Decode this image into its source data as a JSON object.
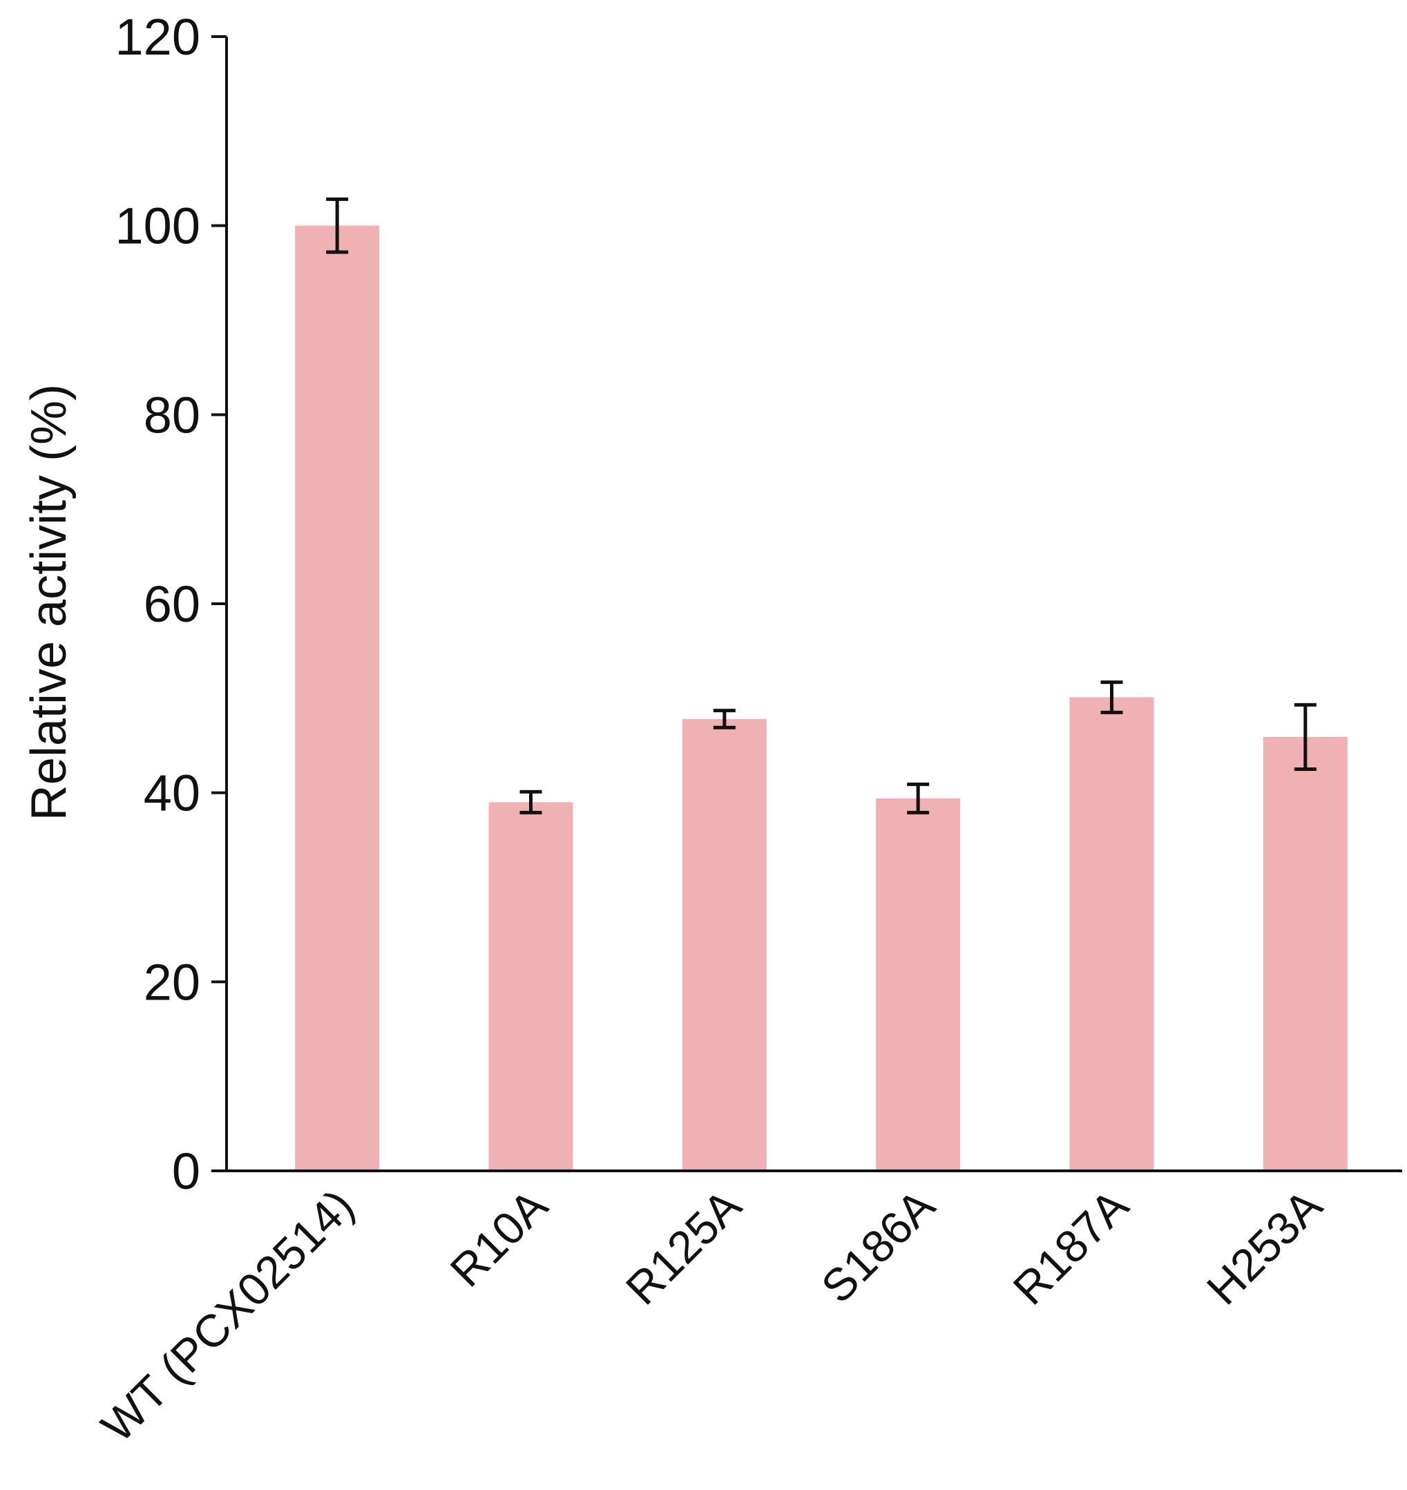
{
  "chart_data": {
    "type": "bar",
    "title": "",
    "xlabel": "",
    "ylabel": "Relative activity (%)",
    "ylim": [
      0,
      120
    ],
    "yticks": [
      0,
      20,
      40,
      60,
      80,
      100,
      120
    ],
    "categories": [
      "WT (PCX02514)",
      "R10A",
      "R125A",
      "S186A",
      "R187A",
      "H253A"
    ],
    "values": [
      100,
      39,
      47.8,
      39.4,
      50.1,
      45.9
    ],
    "errors": [
      2.8,
      1.1,
      0.9,
      1.5,
      1.6,
      3.4
    ],
    "bar_color": "#f0b1b5",
    "axis_color": "#111111",
    "grid": false,
    "legend": "none"
  }
}
